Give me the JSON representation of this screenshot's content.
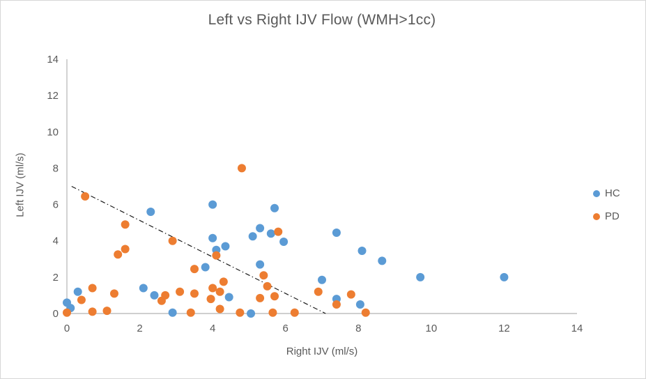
{
  "chart_data": {
    "type": "scatter",
    "title": "Left vs Right IJV Flow (WMH>1cc)",
    "xlabel": "Right IJV (ml/s)",
    "ylabel": "Left IJV (ml/s)",
    "xlim": [
      0,
      14
    ],
    "ylim": [
      0,
      14
    ],
    "x_ticks": [
      0,
      2,
      4,
      6,
      8,
      10,
      12,
      14
    ],
    "y_ticks": [
      0,
      2,
      4,
      6,
      8,
      10,
      12,
      14
    ],
    "grid": false,
    "legend_position": "right",
    "axis_color": "#bfbfbf",
    "text_color": "#595959",
    "series": [
      {
        "name": "HC",
        "color": "#5b9bd5",
        "points": [
          [
            0.0,
            0.6
          ],
          [
            0.1,
            0.3
          ],
          [
            0.3,
            1.2
          ],
          [
            2.1,
            1.4
          ],
          [
            2.3,
            5.6
          ],
          [
            2.4,
            1.0
          ],
          [
            2.9,
            0.05
          ],
          [
            3.8,
            2.55
          ],
          [
            4.0,
            6.0
          ],
          [
            4.0,
            4.15
          ],
          [
            4.1,
            3.5
          ],
          [
            4.35,
            3.7
          ],
          [
            4.45,
            0.9
          ],
          [
            5.05,
            0.0
          ],
          [
            5.1,
            4.25
          ],
          [
            5.3,
            4.7
          ],
          [
            5.3,
            2.7
          ],
          [
            5.6,
            4.4
          ],
          [
            5.7,
            5.8
          ],
          [
            5.95,
            3.95
          ],
          [
            7.0,
            1.85
          ],
          [
            7.4,
            4.45
          ],
          [
            7.4,
            0.8
          ],
          [
            8.05,
            0.5
          ],
          [
            8.1,
            3.45
          ],
          [
            8.65,
            2.9
          ],
          [
            9.7,
            2.0
          ],
          [
            12.0,
            2.0
          ]
        ]
      },
      {
        "name": "PD",
        "color": "#ed7d31",
        "points": [
          [
            0.0,
            0.05
          ],
          [
            0.4,
            0.75
          ],
          [
            0.5,
            6.45
          ],
          [
            0.7,
            1.4
          ],
          [
            0.7,
            0.1
          ],
          [
            1.1,
            0.15
          ],
          [
            1.3,
            1.1
          ],
          [
            1.4,
            3.25
          ],
          [
            1.6,
            3.55
          ],
          [
            1.6,
            4.9
          ],
          [
            2.6,
            0.7
          ],
          [
            2.7,
            1.0
          ],
          [
            2.9,
            4.0
          ],
          [
            3.1,
            1.2
          ],
          [
            3.4,
            0.05
          ],
          [
            3.5,
            1.1
          ],
          [
            3.5,
            2.45
          ],
          [
            3.95,
            0.8
          ],
          [
            4.0,
            1.4
          ],
          [
            4.1,
            3.2
          ],
          [
            4.2,
            1.2
          ],
          [
            4.2,
            0.25
          ],
          [
            4.3,
            1.75
          ],
          [
            4.75,
            0.05
          ],
          [
            4.8,
            8.0
          ],
          [
            5.3,
            0.85
          ],
          [
            5.4,
            2.1
          ],
          [
            5.5,
            1.5
          ],
          [
            5.65,
            0.05
          ],
          [
            5.7,
            0.95
          ],
          [
            5.8,
            4.5
          ],
          [
            6.25,
            0.05
          ],
          [
            6.9,
            1.2
          ],
          [
            7.4,
            0.5
          ],
          [
            7.8,
            1.05
          ],
          [
            8.2,
            0.05
          ]
        ]
      }
    ],
    "trendline": {
      "style": "dash-dot",
      "color": "#1a1a1a",
      "from": [
        0.13,
        7.0
      ],
      "to": [
        7.1,
        0.0
      ]
    }
  }
}
